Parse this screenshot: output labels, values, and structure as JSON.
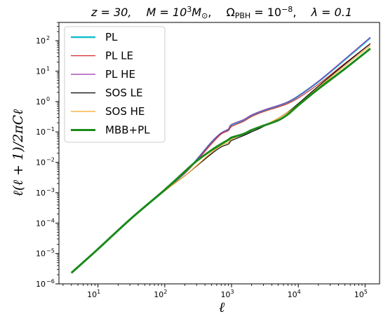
{
  "chart_data": {
    "type": "line",
    "title": "z = 30,    M = 10³M⊙,    ΩPBH = 10⁻⁸,    λ = 0.1",
    "title_parts": {
      "z": "z = 30,",
      "mass": "M = 10",
      "mass_exp": "3",
      "mass_unit": "M",
      "mass_sub": "⊙",
      "omega": "Ω",
      "omega_sub": "PBH",
      "omega_eq": " = 10",
      "omega_exp": "−8",
      "lambda": "λ = 0.1"
    },
    "xlabel": "ℓ",
    "ylabel": "ℓ(ℓ + 1)/2πCℓ",
    "xscale": "log",
    "yscale": "log",
    "xlim": [
      2.6,
      165000
    ],
    "ylim": [
      1e-06,
      400
    ],
    "grid": false,
    "legend_position": "top-left",
    "x_ticks": [
      {
        "value": 10,
        "base": "10",
        "exp": "1"
      },
      {
        "value": 100,
        "base": "10",
        "exp": "2"
      },
      {
        "value": 1000,
        "base": "10",
        "exp": "3"
      },
      {
        "value": 10000,
        "base": "10",
        "exp": "4"
      },
      {
        "value": 100000,
        "base": "10",
        "exp": "5"
      }
    ],
    "y_ticks": [
      {
        "value": 1e-06,
        "base": "10",
        "exp": "−6"
      },
      {
        "value": 1e-05,
        "base": "10",
        "exp": "−5"
      },
      {
        "value": 0.0001,
        "base": "10",
        "exp": "−4"
      },
      {
        "value": 0.001,
        "base": "10",
        "exp": "−3"
      },
      {
        "value": 0.01,
        "base": "10",
        "exp": "−2"
      },
      {
        "value": 0.1,
        "base": "10",
        "exp": "−1"
      },
      {
        "value": 1,
        "base": "10",
        "exp": "0"
      },
      {
        "value": 10,
        "base": "10",
        "exp": "1"
      },
      {
        "value": 100,
        "base": "10",
        "exp": "2"
      }
    ],
    "series": [
      {
        "name": "PL",
        "color": "#17becf",
        "width": 2.5,
        "x": [
          4,
          10,
          30,
          100,
          200,
          300,
          500,
          700,
          900,
          1000,
          1500,
          2000,
          3000,
          5000,
          7000,
          10000,
          20000,
          50000,
          120000
        ],
        "y": [
          2.3e-06,
          1.4e-05,
          0.00013,
          0.0012,
          0.0045,
          0.012,
          0.045,
          0.09,
          0.12,
          0.17,
          0.24,
          0.35,
          0.5,
          0.72,
          0.95,
          1.5,
          4.5,
          24,
          125
        ]
      },
      {
        "name": "PL LE",
        "color": "#d62728",
        "width": 1.2,
        "x": [
          4,
          10,
          30,
          100,
          200,
          300,
          500,
          700,
          900,
          1000,
          1500,
          2000,
          3000,
          5000,
          7000,
          10000,
          20000,
          50000,
          120000
        ],
        "y": [
          2.3e-06,
          1.4e-05,
          0.00013,
          0.0012,
          0.0044,
          0.011,
          0.04,
          0.085,
          0.11,
          0.15,
          0.22,
          0.32,
          0.46,
          0.66,
          0.86,
          1.3,
          3.7,
          18,
          80
        ]
      },
      {
        "name": "PL HE",
        "color": "#9b30b0",
        "width": 1.2,
        "x": [
          4,
          10,
          30,
          100,
          200,
          300,
          500,
          700,
          900,
          1000,
          1500,
          2000,
          3000,
          5000,
          7000,
          10000,
          20000,
          50000,
          120000
        ],
        "y": [
          2.3e-06,
          1.4e-05,
          0.00013,
          0.0012,
          0.0045,
          0.012,
          0.046,
          0.092,
          0.125,
          0.175,
          0.25,
          0.36,
          0.52,
          0.74,
          0.97,
          1.5,
          4.6,
          25,
          130
        ]
      },
      {
        "name": "SOS LE",
        "color": "#000000",
        "width": 1.2,
        "x": [
          4,
          10,
          30,
          100,
          200,
          300,
          500,
          700,
          900,
          1000,
          1500,
          2000,
          3000,
          5000,
          7000,
          10000,
          20000,
          50000,
          120000
        ],
        "y": [
          2.3e-06,
          1.4e-05,
          0.00013,
          0.00115,
          0.0036,
          0.0075,
          0.019,
          0.032,
          0.04,
          0.052,
          0.075,
          0.1,
          0.15,
          0.28,
          0.45,
          0.85,
          3.2,
          17,
          80
        ]
      },
      {
        "name": "SOS HE",
        "color": "#f5a623",
        "width": 1.2,
        "x": [
          4,
          10,
          30,
          100,
          200,
          300,
          500,
          700,
          900,
          1000,
          1500,
          2000,
          3000,
          5000,
          7000,
          10000,
          20000,
          50000,
          120000
        ],
        "y": [
          2.3e-06,
          1.4e-05,
          0.00013,
          0.00115,
          0.0036,
          0.0078,
          0.021,
          0.036,
          0.045,
          0.058,
          0.082,
          0.11,
          0.16,
          0.28,
          0.44,
          0.8,
          2.9,
          15,
          70
        ]
      },
      {
        "name": "MBB+PL",
        "color": "#1a8a1a",
        "width": 3,
        "x": [
          4,
          10,
          30,
          100,
          200,
          300,
          500,
          700,
          900,
          1000,
          1500,
          2000,
          3000,
          5000,
          7000,
          10000,
          20000,
          50000,
          120000
        ],
        "y": [
          2.3e-06,
          1.4e-05,
          0.00013,
          0.00125,
          0.005,
          0.011,
          0.025,
          0.04,
          0.055,
          0.065,
          0.085,
          0.115,
          0.16,
          0.24,
          0.38,
          0.75,
          2.6,
          12,
          55
        ]
      }
    ]
  }
}
